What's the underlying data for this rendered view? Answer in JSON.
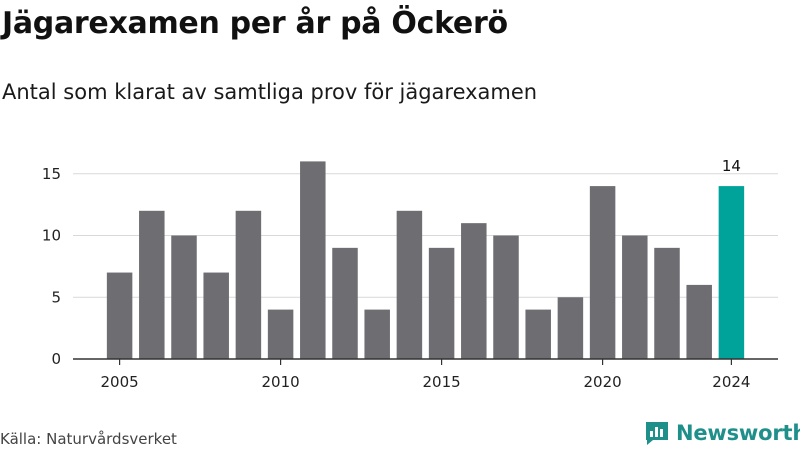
{
  "header": {
    "title": "Jägarexamen per år på Öckerö",
    "subtitle": "Antal som klarat av samtliga prov för jägarexamen"
  },
  "footer": {
    "source": "Källa: Naturvårdsverket",
    "brand": "Newsworthy",
    "brand_icon": "newsworthy-logo-icon"
  },
  "colors": {
    "bar": "#6e6d72",
    "highlight": "#00a39a",
    "grid": "#d9d9d9",
    "brand": "#1f8f8a"
  },
  "chart_data": {
    "type": "bar",
    "x": [
      2005,
      2006,
      2007,
      2008,
      2009,
      2010,
      2011,
      2012,
      2013,
      2014,
      2015,
      2016,
      2017,
      2018,
      2019,
      2020,
      2021,
      2022,
      2023,
      2024
    ],
    "values": [
      7,
      12,
      10,
      7,
      12,
      4,
      16,
      9,
      4,
      12,
      9,
      11,
      10,
      4,
      5,
      14,
      10,
      9,
      6,
      14
    ],
    "highlight": 2024,
    "data_labels": [
      {
        "x": 2024,
        "text": "14"
      }
    ],
    "x_ticks": [
      2005,
      2010,
      2015,
      2020,
      2024
    ],
    "y_ticks": [
      0,
      5,
      10,
      15
    ],
    "ylim": [
      0,
      17
    ],
    "grid": true,
    "xlabel": "",
    "ylabel": ""
  }
}
